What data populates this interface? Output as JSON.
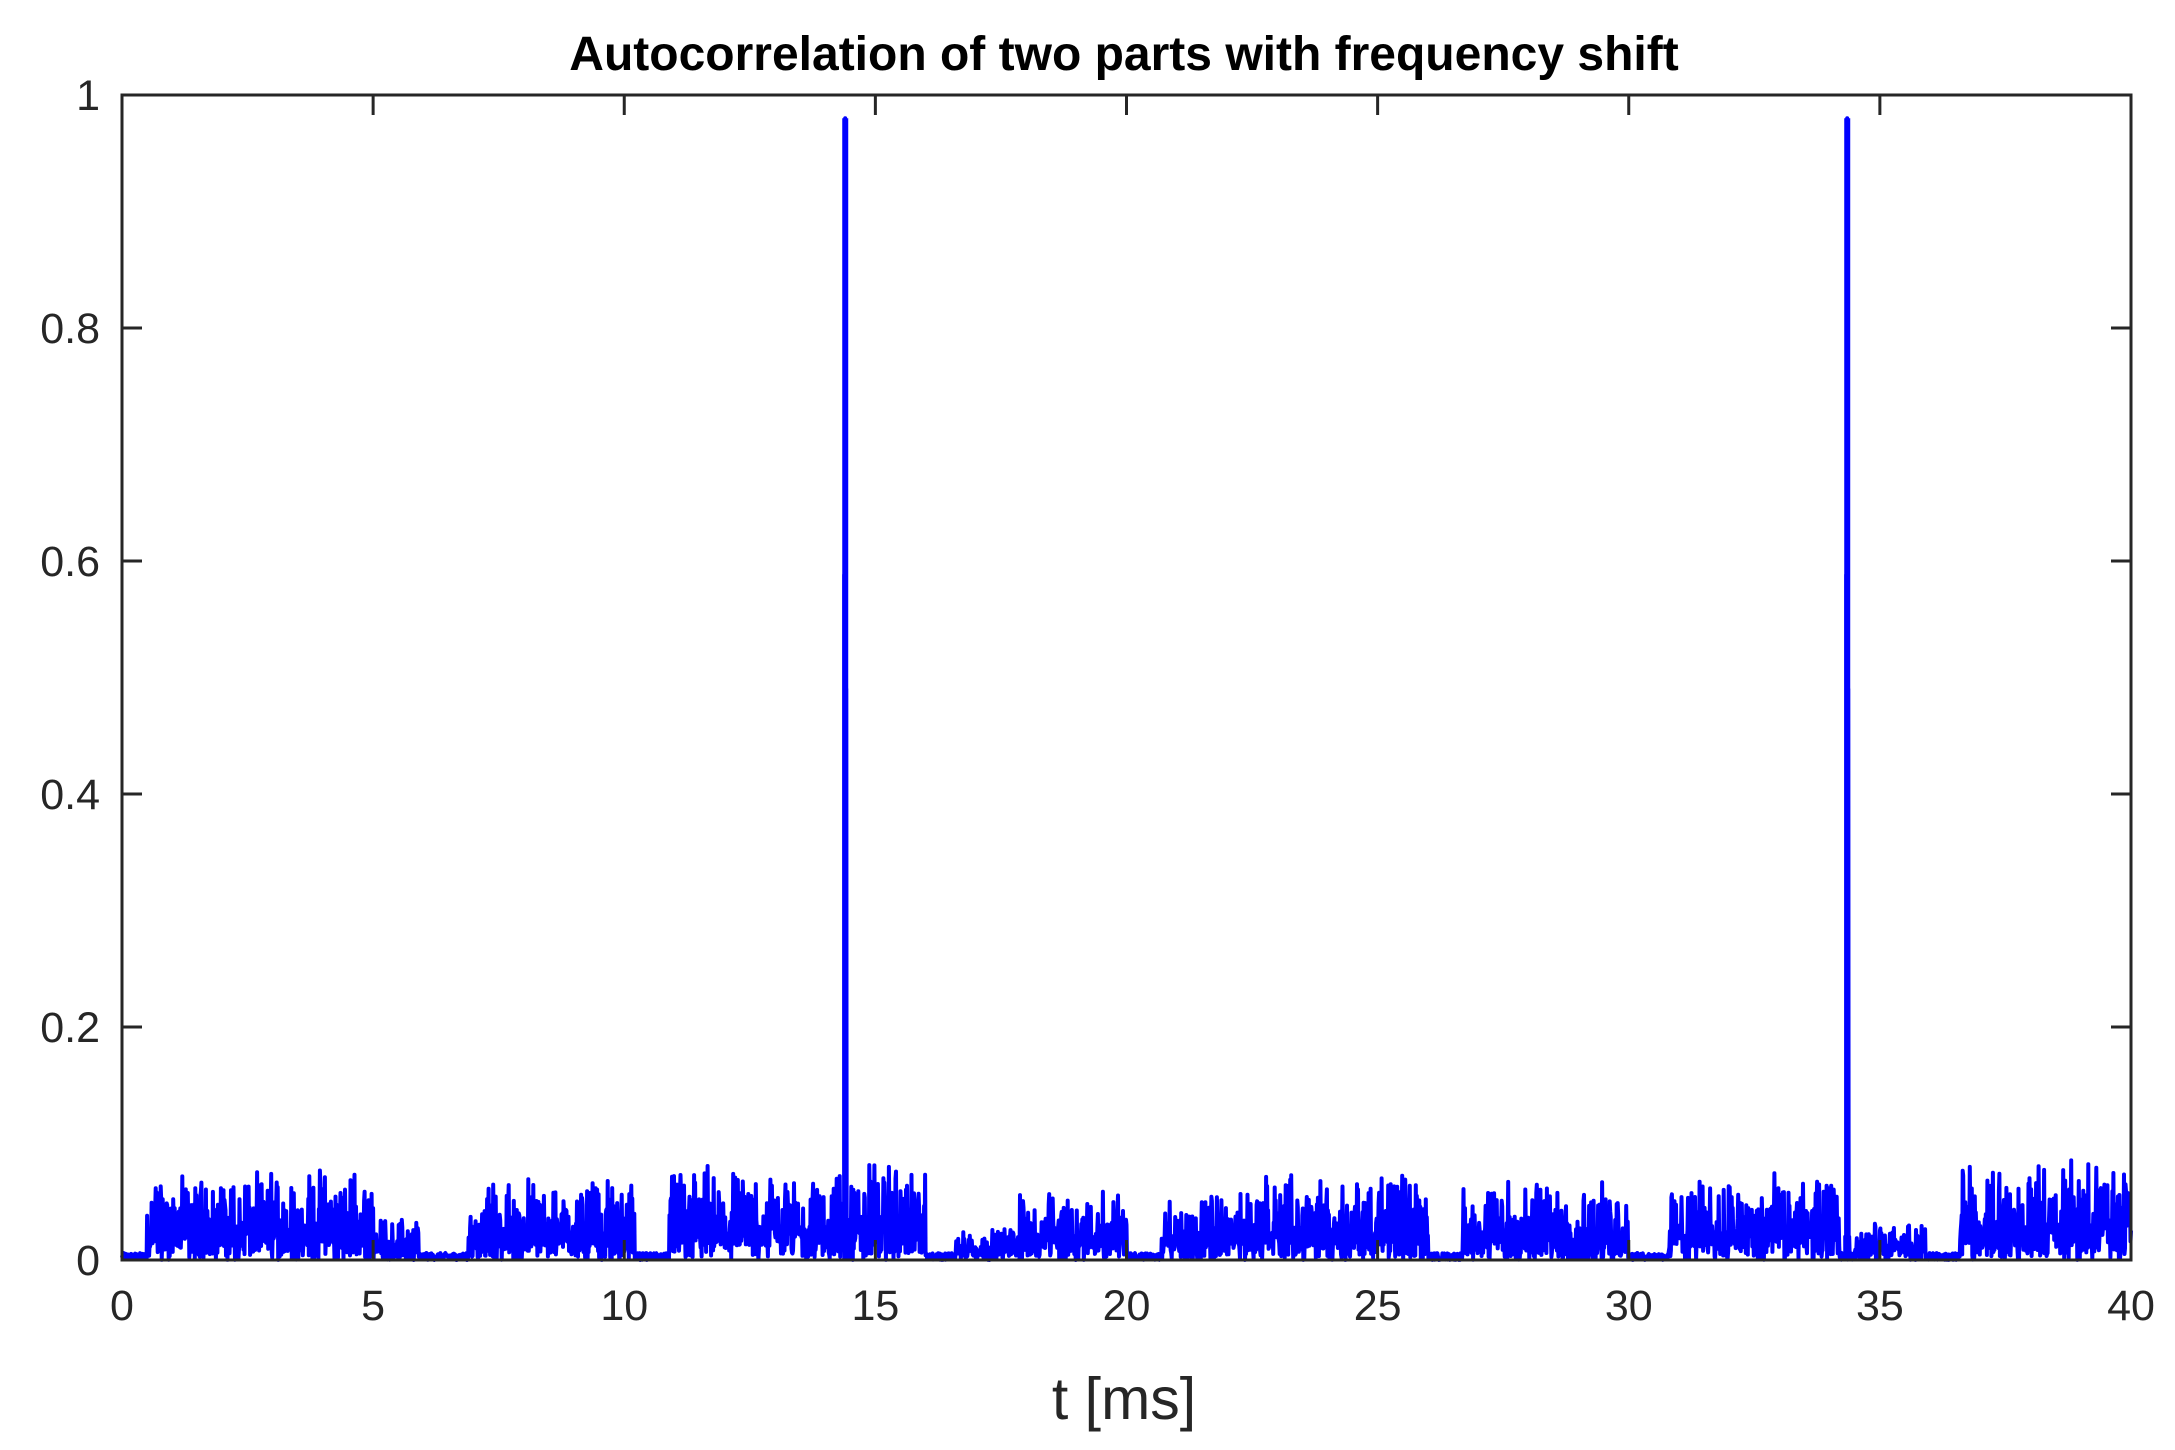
{
  "chart_data": {
    "type": "line",
    "title": "Autocorrelation of two parts with frequency shift",
    "xlabel": "t [ms]",
    "ylabel": "",
    "xlim": [
      0,
      40
    ],
    "ylim": [
      0,
      1
    ],
    "xticks": [
      0,
      5,
      10,
      15,
      20,
      25,
      30,
      35,
      40
    ],
    "xtick_labels": [
      "0",
      "5",
      "10",
      "15",
      "20",
      "25",
      "30",
      "35",
      "40"
    ],
    "yticks": [
      0,
      0.2,
      0.4,
      0.6,
      0.8,
      1
    ],
    "ytick_labels": [
      "0",
      "0.2",
      "0.4",
      "0.6",
      "0.8",
      "1"
    ],
    "grid": false,
    "legend": "none",
    "series": [
      {
        "color": "#0000ff",
        "peaks": [
          {
            "x": 14.4,
            "y": 0.98
          },
          {
            "x": 34.35,
            "y": 0.98
          }
        ],
        "noise_segments": [
          {
            "x_start": 0.5,
            "x_end": 5.0,
            "level_max": 0.08
          },
          {
            "x_start": 5.0,
            "x_end": 5.9,
            "level_max": 0.04
          },
          {
            "x_start": 6.9,
            "x_end": 10.2,
            "level_max": 0.075
          },
          {
            "x_start": 10.9,
            "x_end": 16.0,
            "level_max": 0.085
          },
          {
            "x_start": 16.6,
            "x_end": 17.8,
            "level_max": 0.03
          },
          {
            "x_start": 17.8,
            "x_end": 20.0,
            "level_max": 0.065
          },
          {
            "x_start": 20.7,
            "x_end": 22.4,
            "level_max": 0.06
          },
          {
            "x_start": 22.4,
            "x_end": 26.0,
            "level_max": 0.08
          },
          {
            "x_start": 26.7,
            "x_end": 30.0,
            "level_max": 0.07
          },
          {
            "x_start": 30.8,
            "x_end": 34.2,
            "level_max": 0.075
          },
          {
            "x_start": 34.5,
            "x_end": 35.9,
            "level_max": 0.035
          },
          {
            "x_start": 36.6,
            "x_end": 40.0,
            "level_max": 0.09
          }
        ],
        "floor_level": 0.005
      }
    ]
  }
}
